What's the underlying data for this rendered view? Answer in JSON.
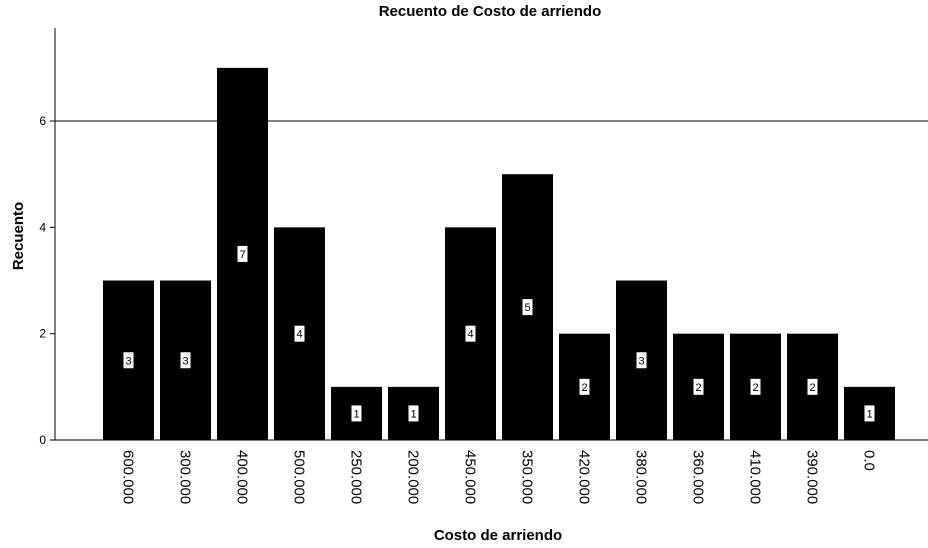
{
  "chart_data": {
    "type": "bar",
    "title": "Recuento de Costo de arriendo",
    "x_label": "Costo de arriendo",
    "y_label": "Recuento",
    "categories": [
      "600.000",
      "300.000",
      "400.000",
      "500.000",
      "250.000",
      "200.000",
      "450.000",
      "350.000",
      "420.000",
      "380.000",
      "360.000",
      "410.000",
      "390.000",
      "0.0"
    ],
    "values": [
      3,
      3,
      7,
      4,
      1,
      1,
      4,
      5,
      2,
      3,
      2,
      2,
      2,
      1
    ],
    "color": "#000000",
    "ylim": [
      0,
      7.75
    ],
    "yticks": [
      0,
      2,
      4,
      6
    ],
    "reference_line": 6
  }
}
